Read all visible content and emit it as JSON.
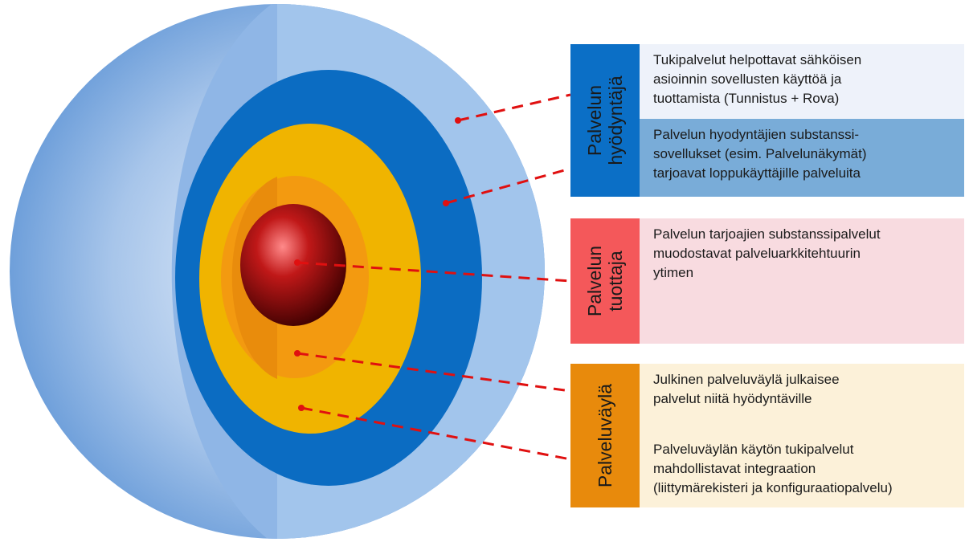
{
  "groups": [
    {
      "label": [
        "Palvelun",
        "hyödyntäjä"
      ],
      "color": "#0b6fc6",
      "items": [
        {
          "lines": [
            "Tukipalvelut helpottavat sähköisen",
            "asioinnin sovellusten käyttöä ja",
            "tuottamista (Tunnistus + Rova)"
          ],
          "color": "#eef2fa"
        },
        {
          "lines": [
            "Palvelun hyodyntäjien substanssi-",
            "sovellukset (esim. Palvelunäkymät)",
            "tarjoavat loppukäyttäjille palveluita"
          ],
          "color": "#79acd8"
        }
      ]
    },
    {
      "label": [
        "Palvelun",
        "tuottaja"
      ],
      "color": "#f4585a",
      "items": [
        {
          "lines": [
            "Palvelun tarjoajien substanssipalvelut",
            "muodostavat  palveluarkkitehtuurin",
            "ytimen"
          ],
          "color": "#f8dbe0"
        }
      ]
    },
    {
      "label": [
        "Palveluväylä"
      ],
      "color": "#e88a0c",
      "items": [
        {
          "lines": [
            "Julkinen palveluväylä julkaisee",
            "palvelut niitä hyödyntäville"
          ],
          "color": "#fcf1d9"
        },
        {
          "lines": [
            "Palveluväylän käytön tukipalvelut",
            "mahdollistavat integraation",
            "(liittymärekisteri ja konfiguraatiopalvelu)"
          ],
          "color": "#fcf1d9"
        }
      ]
    }
  ]
}
